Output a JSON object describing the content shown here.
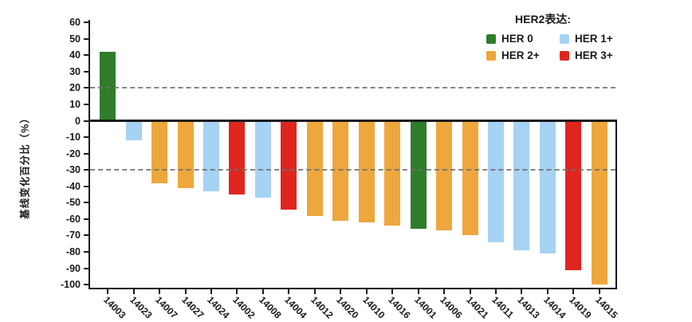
{
  "figure": {
    "background": "#ffffff"
  },
  "legend": {
    "title": "HER2表达:",
    "items": [
      {
        "label": "HER 0",
        "color": "#2f7d2b"
      },
      {
        "label": "HER 1+",
        "color": "#a6d2f3"
      },
      {
        "label": "HER 2+",
        "color": "#eea73d"
      },
      {
        "label": "HER 3+",
        "color": "#e0251f"
      }
    ]
  },
  "colors": {
    "axis": "#1a1a1a",
    "dashed_reference": "#6e6e6e",
    "HER 0": "#2f7d2b",
    "HER 1+": "#a6d2f3",
    "HER 2+": "#eea73d",
    "HER 3+": "#e0251f"
  },
  "chart_data": {
    "type": "bar",
    "subtype": "waterfall-tumor-response",
    "title": "",
    "xlabel": "",
    "ylabel": "基线变化百分比（%）",
    "ylim": [
      -100,
      60
    ],
    "yticks": [
      60,
      50,
      40,
      30,
      20,
      10,
      0,
      -10,
      -20,
      -30,
      -40,
      -50,
      -60,
      -70,
      -80,
      -90,
      -100
    ],
    "reference_lines": [
      20,
      -30
    ],
    "grid": false,
    "legend_position": "top-right",
    "series_name": "HER2表达",
    "categories": [
      "14003",
      "14023",
      "14007",
      "14027",
      "14024",
      "14002",
      "14008",
      "14004",
      "14012",
      "14020",
      "14010",
      "14016",
      "14001",
      "14006",
      "14021",
      "14011",
      "14013",
      "14014",
      "14019",
      "14015"
    ],
    "points": [
      {
        "id": "14003",
        "value": 42,
        "her2": "HER 0"
      },
      {
        "id": "14023",
        "value": -12,
        "her2": "HER 1+"
      },
      {
        "id": "14007",
        "value": -38,
        "her2": "HER 2+"
      },
      {
        "id": "14027",
        "value": -41,
        "her2": "HER 2+"
      },
      {
        "id": "14024",
        "value": -43,
        "her2": "HER 1+"
      },
      {
        "id": "14002",
        "value": -45,
        "her2": "HER 3+"
      },
      {
        "id": "14008",
        "value": -47,
        "her2": "HER 1+"
      },
      {
        "id": "14004",
        "value": -54,
        "her2": "HER 3+"
      },
      {
        "id": "14012",
        "value": -58,
        "her2": "HER 2+"
      },
      {
        "id": "14020",
        "value": -61,
        "her2": "HER 2+"
      },
      {
        "id": "14010",
        "value": -62,
        "her2": "HER 2+"
      },
      {
        "id": "14016",
        "value": -64,
        "her2": "HER 2+"
      },
      {
        "id": "14001",
        "value": -66,
        "her2": "HER 0"
      },
      {
        "id": "14006",
        "value": -67,
        "her2": "HER 2+"
      },
      {
        "id": "14021",
        "value": -70,
        "her2": "HER 2+"
      },
      {
        "id": "14011",
        "value": -74,
        "her2": "HER 1+"
      },
      {
        "id": "14013",
        "value": -79,
        "her2": "HER 1+"
      },
      {
        "id": "14014",
        "value": -81,
        "her2": "HER 1+"
      },
      {
        "id": "14019",
        "value": -91,
        "her2": "HER 3+"
      },
      {
        "id": "14015",
        "value": -100,
        "her2": "HER 2+"
      }
    ]
  }
}
